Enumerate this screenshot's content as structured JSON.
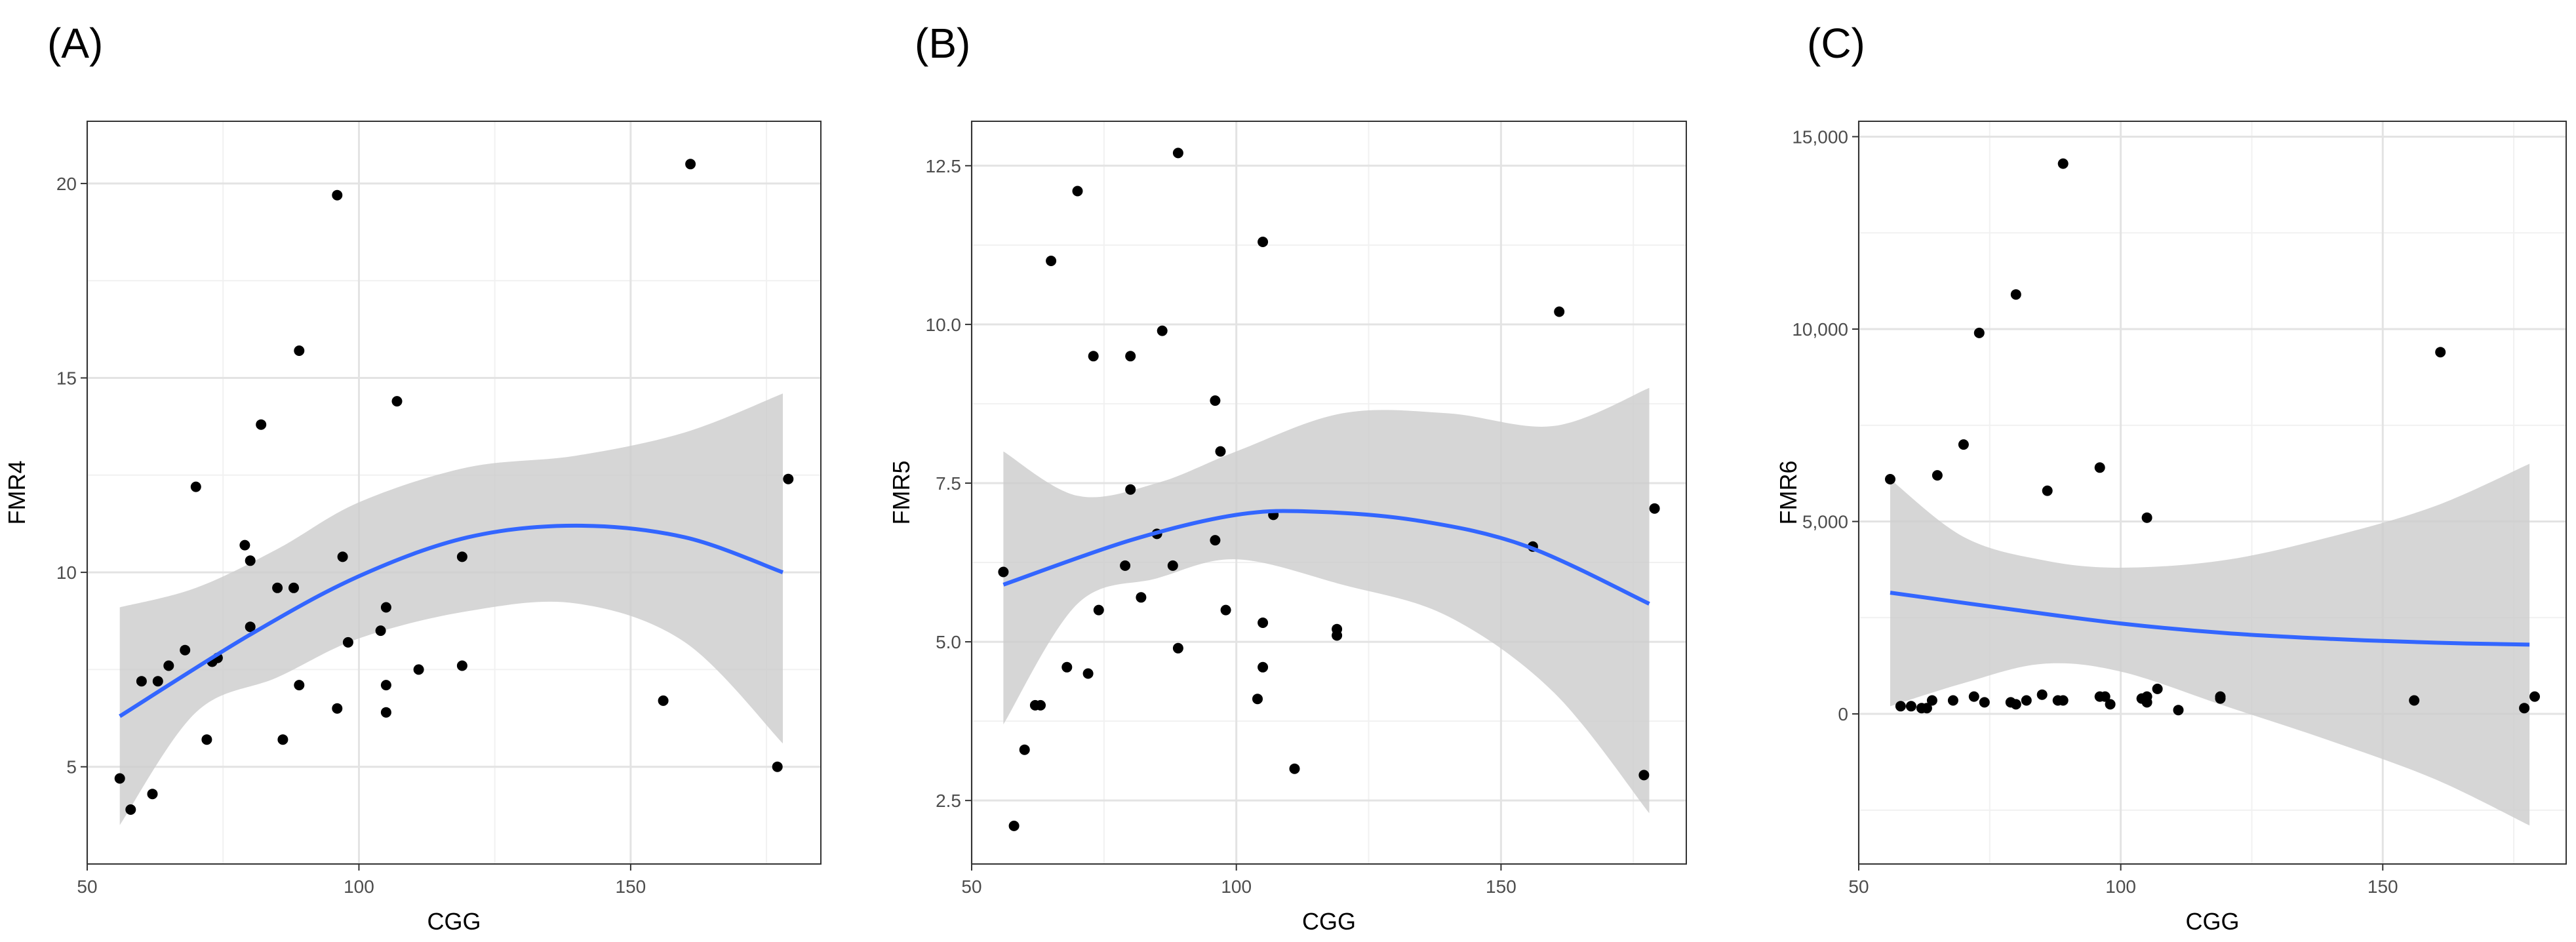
{
  "figure": {
    "panel_labels": [
      "(A)",
      "(B)",
      "(C)"
    ]
  },
  "colors": {
    "panel_bg": "#ffffff",
    "grid_major": "#e3e3e3",
    "grid_minor": "#f1f1f1",
    "border": "#333333",
    "point": "#000000",
    "fit_line": "#3366ff",
    "ribbon": "#cccccc",
    "tick_text": "#4d4d4d"
  },
  "chart_data": [
    {
      "type": "scatter",
      "panel": "(A)",
      "xlabel": "CGG",
      "ylabel": "FMR4",
      "xlim": [
        50,
        185
      ],
      "ylim": [
        2.5,
        21.6
      ],
      "xticks": [
        50,
        100,
        150
      ],
      "xtick_labels": [
        "50",
        "100",
        "150"
      ],
      "yticks": [
        5,
        10,
        15,
        20
      ],
      "ytick_labels": [
        "5",
        "10",
        "15",
        "20"
      ],
      "points": [
        [
          56,
          4.7
        ],
        [
          58,
          3.9
        ],
        [
          60,
          7.2
        ],
        [
          62,
          4.3
        ],
        [
          63,
          7.2
        ],
        [
          65,
          7.6
        ],
        [
          68,
          8.0
        ],
        [
          70,
          12.2
        ],
        [
          72,
          5.7
        ],
        [
          73,
          7.7
        ],
        [
          74,
          7.8
        ],
        [
          79,
          10.7
        ],
        [
          80,
          10.3
        ],
        [
          80,
          8.6
        ],
        [
          82,
          13.8
        ],
        [
          85,
          9.6
        ],
        [
          86,
          5.7
        ],
        [
          88,
          9.6
        ],
        [
          89,
          7.1
        ],
        [
          89,
          15.7
        ],
        [
          96,
          19.7
        ],
        [
          96,
          6.5
        ],
        [
          97,
          10.4
        ],
        [
          98,
          8.2
        ],
        [
          104,
          8.5
        ],
        [
          105,
          7.1
        ],
        [
          105,
          6.4
        ],
        [
          105,
          9.1
        ],
        [
          107,
          14.4
        ],
        [
          111,
          7.5
        ],
        [
          119,
          10.4
        ],
        [
          119,
          7.6
        ],
        [
          156,
          6.7
        ],
        [
          161,
          20.5
        ],
        [
          177,
          5.0
        ],
        [
          179,
          12.4
        ]
      ],
      "fit_line": [
        [
          56,
          6.3
        ],
        [
          80,
          8.4
        ],
        [
          100,
          9.9
        ],
        [
          120,
          10.9
        ],
        [
          140,
          11.2
        ],
        [
          160,
          10.9
        ],
        [
          178,
          10.0
        ]
      ],
      "ribbon_upper": [
        [
          56,
          9.1
        ],
        [
          70,
          9.6
        ],
        [
          85,
          10.6
        ],
        [
          100,
          11.8
        ],
        [
          120,
          12.7
        ],
        [
          140,
          13.0
        ],
        [
          160,
          13.6
        ],
        [
          178,
          14.6
        ]
      ],
      "ribbon_lower": [
        [
          56,
          3.5
        ],
        [
          70,
          6.4
        ],
        [
          85,
          7.3
        ],
        [
          100,
          8.3
        ],
        [
          120,
          9.0
        ],
        [
          140,
          9.2
        ],
        [
          160,
          8.2
        ],
        [
          178,
          5.6
        ]
      ]
    },
    {
      "type": "scatter",
      "panel": "(B)",
      "xlabel": "CGG",
      "ylabel": "FMR5",
      "xlim": [
        50,
        185
      ],
      "ylim": [
        1.5,
        13.2
      ],
      "xticks": [
        50,
        100,
        150
      ],
      "xtick_labels": [
        "50",
        "100",
        "150"
      ],
      "yticks": [
        2.5,
        5.0,
        7.5,
        10.0,
        12.5
      ],
      "ytick_labels": [
        "2.5",
        "5.0",
        "7.5",
        "10.0",
        "12.5"
      ],
      "points": [
        [
          56,
          6.1
        ],
        [
          58,
          2.1
        ],
        [
          60,
          3.3
        ],
        [
          62,
          4.0
        ],
        [
          63,
          4.0
        ],
        [
          65,
          11.0
        ],
        [
          68,
          4.6
        ],
        [
          70,
          12.1
        ],
        [
          72,
          4.5
        ],
        [
          73,
          9.5
        ],
        [
          74,
          5.5
        ],
        [
          79,
          6.2
        ],
        [
          80,
          9.5
        ],
        [
          80,
          7.4
        ],
        [
          82,
          5.7
        ],
        [
          85,
          6.7
        ],
        [
          86,
          9.9
        ],
        [
          88,
          6.2
        ],
        [
          89,
          12.7
        ],
        [
          89,
          4.9
        ],
        [
          96,
          8.8
        ],
        [
          96,
          6.6
        ],
        [
          97,
          8.0
        ],
        [
          98,
          5.5
        ],
        [
          104,
          4.1
        ],
        [
          105,
          11.3
        ],
        [
          105,
          5.3
        ],
        [
          105,
          4.6
        ],
        [
          107,
          7.0
        ],
        [
          111,
          3.0
        ],
        [
          119,
          5.2
        ],
        [
          119,
          5.1
        ],
        [
          156,
          6.5
        ],
        [
          161,
          10.2
        ],
        [
          177,
          2.9
        ],
        [
          179,
          7.1
        ]
      ],
      "fit_line": [
        [
          56,
          5.9
        ],
        [
          80,
          6.6
        ],
        [
          100,
          7.0
        ],
        [
          115,
          7.05
        ],
        [
          135,
          6.9
        ],
        [
          155,
          6.5
        ],
        [
          178,
          5.6
        ]
      ],
      "ribbon_upper": [
        [
          56,
          8.0
        ],
        [
          70,
          7.3
        ],
        [
          85,
          7.5
        ],
        [
          100,
          8.0
        ],
        [
          120,
          8.6
        ],
        [
          140,
          8.6
        ],
        [
          160,
          8.4
        ],
        [
          178,
          9.0
        ]
      ],
      "ribbon_lower": [
        [
          56,
          3.7
        ],
        [
          70,
          5.6
        ],
        [
          85,
          6.0
        ],
        [
          100,
          6.3
        ],
        [
          120,
          5.9
        ],
        [
          140,
          5.4
        ],
        [
          160,
          4.2
        ],
        [
          178,
          2.3
        ]
      ]
    },
    {
      "type": "scatter",
      "panel": "(C)",
      "xlabel": "CGG",
      "ylabel": "FMR6",
      "xlim": [
        50,
        185
      ],
      "ylim": [
        -3900,
        15400
      ],
      "xticks": [
        50,
        100,
        150
      ],
      "xtick_labels": [
        "50",
        "100",
        "150"
      ],
      "yticks": [
        0,
        5000,
        10000,
        15000
      ],
      "ytick_labels": [
        "0",
        "5,000",
        "10,000",
        "15,000"
      ],
      "points": [
        [
          56,
          6100
        ],
        [
          58,
          200
        ],
        [
          60,
          200
        ],
        [
          62,
          150
        ],
        [
          63,
          150
        ],
        [
          64,
          350
        ],
        [
          65,
          6200
        ],
        [
          68,
          350
        ],
        [
          70,
          7000
        ],
        [
          72,
          450
        ],
        [
          73,
          9900
        ],
        [
          74,
          300
        ],
        [
          79,
          300
        ],
        [
          80,
          250
        ],
        [
          80,
          10900
        ],
        [
          82,
          350
        ],
        [
          85,
          500
        ],
        [
          86,
          5800
        ],
        [
          88,
          350
        ],
        [
          89,
          14300
        ],
        [
          89,
          350
        ],
        [
          96,
          6400
        ],
        [
          96,
          450
        ],
        [
          97,
          450
        ],
        [
          98,
          250
        ],
        [
          104,
          400
        ],
        [
          105,
          300
        ],
        [
          105,
          5100
        ],
        [
          105,
          450
        ],
        [
          107,
          650
        ],
        [
          111,
          100
        ],
        [
          119,
          450
        ],
        [
          119,
          400
        ],
        [
          156,
          350
        ],
        [
          161,
          9400
        ],
        [
          177,
          150
        ],
        [
          179,
          450
        ]
      ],
      "fit_line": [
        [
          56,
          3150
        ],
        [
          80,
          2700
        ],
        [
          100,
          2350
        ],
        [
          120,
          2100
        ],
        [
          140,
          1950
        ],
        [
          160,
          1850
        ],
        [
          178,
          1800
        ]
      ],
      "ribbon_upper": [
        [
          56,
          6100
        ],
        [
          70,
          4600
        ],
        [
          85,
          4000
        ],
        [
          100,
          3800
        ],
        [
          120,
          4000
        ],
        [
          140,
          4600
        ],
        [
          160,
          5400
        ],
        [
          178,
          6500
        ]
      ],
      "ribbon_lower": [
        [
          56,
          200
        ],
        [
          70,
          800
        ],
        [
          85,
          1300
        ],
        [
          100,
          1100
        ],
        [
          120,
          200
        ],
        [
          140,
          -700
        ],
        [
          160,
          -1700
        ],
        [
          178,
          -2900
        ]
      ]
    }
  ]
}
